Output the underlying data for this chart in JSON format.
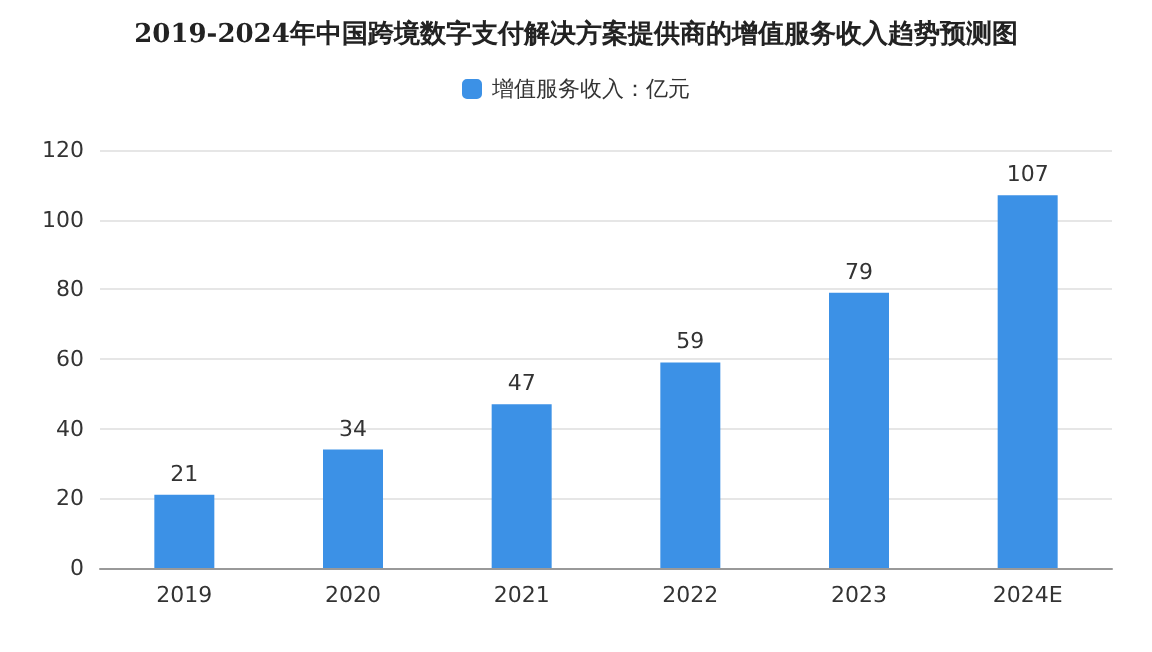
{
  "chart_data": {
    "type": "bar",
    "title": "2019-2024年中国跨境数字支付解决方案提供商的增值服务收入趋势预测图",
    "categories": [
      "2019",
      "2020",
      "2021",
      "2022",
      "2023",
      "2024E"
    ],
    "series": [
      {
        "name": "增值服务收入：亿元",
        "color": "#3c91e6",
        "values": [
          21,
          34,
          47,
          59,
          79,
          107
        ]
      }
    ],
    "ylim": [
      0,
      120
    ],
    "yticks": [
      0,
      20,
      40,
      60,
      80,
      100,
      120
    ],
    "grid": "y",
    "legend": "top",
    "data_labels": true
  }
}
